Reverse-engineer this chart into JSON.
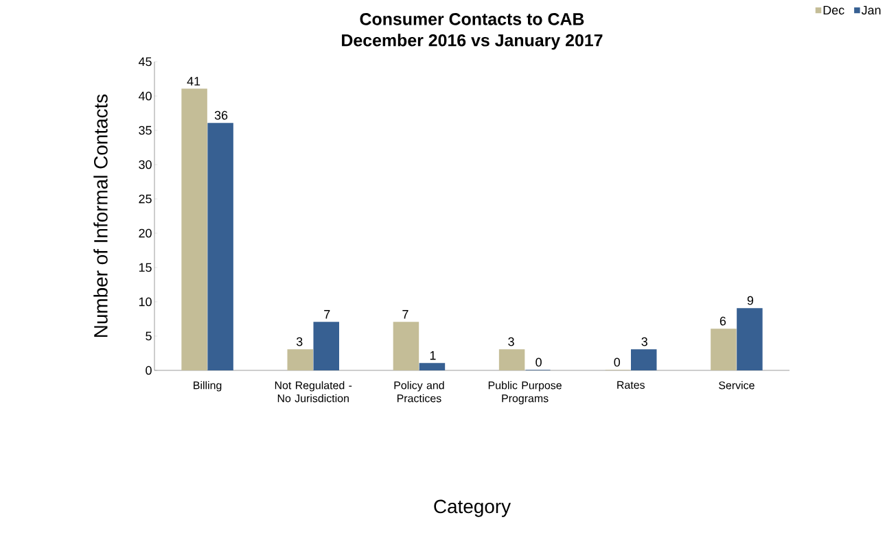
{
  "chart_data": {
    "type": "bar",
    "title": "Consumer  Contacts to CAB\nDecember 2016 vs January 2017",
    "xlabel": "Category",
    "ylabel": "Number of Informal  Contacts",
    "categories": [
      "Billing",
      "Not Regulated - No Jurisdiction",
      "Policy and Practices",
      "Public Purpose Programs",
      "Rates",
      "Service"
    ],
    "series": [
      {
        "name": "Dec",
        "color": "#c4bd97",
        "values": [
          41,
          3,
          7,
          3,
          0,
          6
        ]
      },
      {
        "name": "Jan",
        "color": "#376092",
        "values": [
          36,
          7,
          1,
          0,
          3,
          9
        ]
      }
    ],
    "ylim": [
      0,
      45
    ],
    "yticks": [
      0,
      5,
      10,
      15,
      20,
      25,
      30,
      35,
      40,
      45
    ],
    "legend": "top right",
    "data_labels": true
  }
}
